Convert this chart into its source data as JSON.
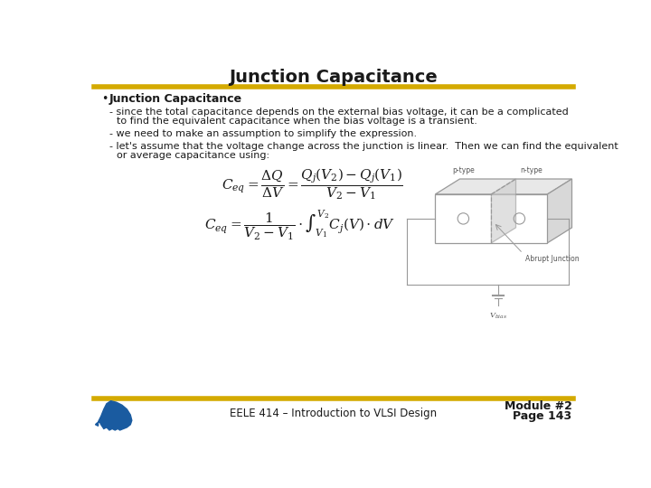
{
  "title": "Junction Capacitance",
  "title_fontsize": 14,
  "background_color": "#ffffff",
  "header_line_color": "#d4aa00",
  "footer_line_color": "#d4aa00",
  "bullet_heading": "Junction Capacitance",
  "footer_text": "EELE 414 – Introduction to VLSI Design",
  "eq1": "$C_{eq} = \\dfrac{\\Delta Q}{\\Delta V} = \\dfrac{Q_j(V_2)-Q_j(V_1)}{V_2-V_1}$",
  "eq2": "$C_{eq} = \\dfrac{1}{V_2-V_1}\\cdot\\int_{V_1}^{V_2}C_j(V)\\cdot dV$",
  "text_color": "#1a1a1a",
  "diagram_color": "#aaaaaa",
  "diagram_line_color": "#999999",
  "p_type_label": "p-type",
  "n_type_label": "n-type",
  "abrupt_label": "Abrupt Junction",
  "vbias_label": "$V_{bias}$"
}
